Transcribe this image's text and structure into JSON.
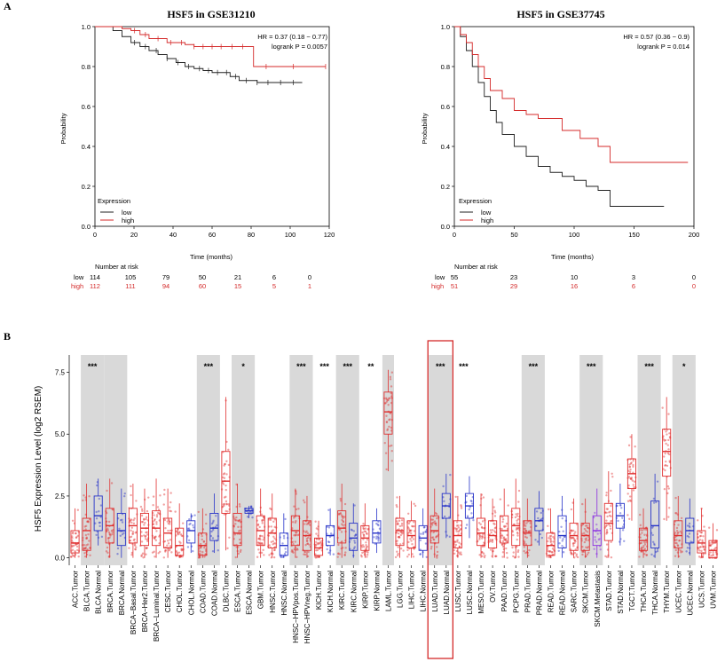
{
  "figure": {
    "panel_a_label": "A",
    "panel_b_label": "B"
  },
  "colors": {
    "low": "#222222",
    "high": "#d42a2a",
    "tumor": "#e03030",
    "normal": "#2733c8",
    "metastasis": "#8a2be2",
    "normal_bg": "#d9d9d9",
    "highlight": "#d42a2a"
  },
  "chart_data": [
    {
      "type": "line",
      "subtype": "kaplan-meier",
      "title": "HSF5 in GSE31210",
      "hr_text": "HR = 0.37 (0.18 − 0.77)",
      "logrank_text": "logrank P = 0.0057",
      "xlabel": "Time (months)",
      "ylabel": "Probability",
      "xlim": [
        0,
        130
      ],
      "ylim": [
        0,
        1
      ],
      "xticks": [
        "0",
        "20",
        "40",
        "60",
        "80",
        "100",
        "120"
      ],
      "yticks": [
        "0.0",
        "0.2",
        "0.4",
        "0.6",
        "0.8",
        "1.0"
      ],
      "legend_title": "Expression",
      "legend": [
        "low",
        "high"
      ],
      "risk_header": "Number at risk",
      "risk_table": {
        "low": [
          "114",
          "105",
          "79",
          "50",
          "21",
          "6",
          "0"
        ],
        "high": [
          "112",
          "111",
          "94",
          "60",
          "15",
          "5",
          "1"
        ]
      },
      "series": [
        {
          "name": "low",
          "x": [
            0,
            10,
            15,
            20,
            25,
            30,
            35,
            40,
            45,
            50,
            55,
            60,
            65,
            70,
            75,
            80,
            90,
            100,
            115
          ],
          "y": [
            1.0,
            0.98,
            0.95,
            0.92,
            0.9,
            0.88,
            0.86,
            0.84,
            0.82,
            0.8,
            0.79,
            0.78,
            0.77,
            0.77,
            0.75,
            0.73,
            0.72,
            0.72,
            0.72
          ],
          "censored": [
            22,
            28,
            34,
            40,
            46,
            52,
            58,
            63,
            68,
            73,
            78,
            84,
            90,
            96,
            103,
            110
          ]
        },
        {
          "name": "high",
          "x": [
            0,
            15,
            20,
            25,
            30,
            40,
            50,
            55,
            60,
            88,
            128
          ],
          "y": [
            1.0,
            0.99,
            0.98,
            0.96,
            0.94,
            0.92,
            0.91,
            0.9,
            0.9,
            0.8,
            0.8
          ],
          "censored": [
            22,
            28,
            35,
            42,
            48,
            55,
            60,
            65,
            70,
            76,
            82,
            95,
            110,
            128
          ]
        }
      ]
    },
    {
      "type": "line",
      "subtype": "kaplan-meier",
      "title": "HSF5 in GSE37745",
      "hr_text": "HR = 0.57 (0.36 − 0.9)",
      "logrank_text": "logrank P = 0.014",
      "xlabel": "Time (months)",
      "ylabel": "Probability",
      "xlim": [
        0,
        200
      ],
      "ylim": [
        0,
        1
      ],
      "xticks": [
        "0",
        "50",
        "100",
        "150",
        "200"
      ],
      "yticks": [
        "0.0",
        "0.2",
        "0.4",
        "0.6",
        "0.8",
        "1.0"
      ],
      "legend_title": "Expression",
      "legend": [
        "low",
        "high"
      ],
      "risk_header": "Number at risk",
      "risk_table": {
        "low": [
          "55",
          "23",
          "10",
          "3",
          "0"
        ],
        "high": [
          "51",
          "29",
          "16",
          "6",
          "0"
        ]
      },
      "series": [
        {
          "name": "low",
          "x": [
            0,
            5,
            10,
            15,
            20,
            25,
            30,
            35,
            40,
            50,
            60,
            70,
            80,
            90,
            100,
            110,
            120,
            130,
            175
          ],
          "y": [
            1.0,
            0.95,
            0.88,
            0.8,
            0.72,
            0.65,
            0.58,
            0.52,
            0.46,
            0.4,
            0.35,
            0.3,
            0.27,
            0.25,
            0.23,
            0.2,
            0.18,
            0.1,
            0.1
          ]
        },
        {
          "name": "high",
          "x": [
            0,
            5,
            10,
            15,
            20,
            25,
            30,
            40,
            50,
            60,
            70,
            90,
            105,
            120,
            130,
            195
          ],
          "y": [
            1.0,
            0.96,
            0.92,
            0.86,
            0.8,
            0.74,
            0.68,
            0.64,
            0.58,
            0.56,
            0.54,
            0.48,
            0.44,
            0.4,
            0.32,
            0.32
          ]
        }
      ]
    },
    {
      "type": "box",
      "ylabel": "HSF5 Expression Level (log2 RSEM)",
      "ylim": [
        -0.3,
        8.2
      ],
      "yticks": [
        "0.0",
        "2.5",
        "5.0",
        "7.5"
      ],
      "highlight_categories": [
        "LUAD.Tumor",
        "LUAD.Normal"
      ],
      "categories": [
        {
          "label": "ACC.Tumor",
          "kind": "tumor",
          "q1": 0.2,
          "med": 0.6,
          "q3": 1.1,
          "wl": 0,
          "wh": 2.0
        },
        {
          "label": "BLCA.Tumor",
          "kind": "tumor",
          "q1": 0.3,
          "med": 1.1,
          "q3": 1.6,
          "wl": 0,
          "wh": 3.0
        },
        {
          "label": "BLCA.Normal",
          "kind": "normal",
          "q1": 1.1,
          "med": 1.7,
          "q3": 2.5,
          "wl": 0.5,
          "wh": 3.2
        },
        {
          "label": "BRCA.Tumor",
          "kind": "tumor",
          "q1": 0.6,
          "med": 1.3,
          "q3": 2.0,
          "wl": 0,
          "wh": 3.2
        },
        {
          "label": "BRCA.Normal",
          "kind": "normal",
          "q1": 0.5,
          "med": 1.1,
          "q3": 1.8,
          "wl": 0,
          "wh": 2.8
        },
        {
          "label": "BRCA−Basal.Tumor",
          "kind": "tumor",
          "q1": 0.6,
          "med": 1.3,
          "q3": 2.0,
          "wl": 0,
          "wh": 3.0
        },
        {
          "label": "BRCA−Her2.Tumor",
          "kind": "tumor",
          "q1": 0.5,
          "med": 1.2,
          "q3": 1.8,
          "wl": 0,
          "wh": 2.8
        },
        {
          "label": "BRCA−Luminal.Tumor",
          "kind": "tumor",
          "q1": 0.5,
          "med": 1.2,
          "q3": 1.9,
          "wl": 0,
          "wh": 3.2
        },
        {
          "label": "CESC.Tumor",
          "kind": "tumor",
          "q1": 0.4,
          "med": 1.0,
          "q3": 1.6,
          "wl": 0,
          "wh": 2.8
        },
        {
          "label": "CHOL.Tumor",
          "kind": "tumor",
          "q1": 0.1,
          "med": 0.5,
          "q3": 1.2,
          "wl": 0,
          "wh": 2.2
        },
        {
          "label": "CHOL.Normal",
          "kind": "normal",
          "q1": 0.6,
          "med": 1.1,
          "q3": 1.5,
          "wl": 0.2,
          "wh": 1.8
        },
        {
          "label": "COAD.Tumor",
          "kind": "tumor",
          "q1": 0.1,
          "med": 0.5,
          "q3": 1.0,
          "wl": 0,
          "wh": 2.0
        },
        {
          "label": "COAD.Normal",
          "kind": "normal",
          "q1": 0.7,
          "med": 1.2,
          "q3": 1.8,
          "wl": 0.2,
          "wh": 2.6
        },
        {
          "label": "DLBC.Tumor",
          "kind": "tumor",
          "q1": 1.8,
          "med": 3.1,
          "q3": 4.3,
          "wl": 0.3,
          "wh": 6.5
        },
        {
          "label": "ESCA.Tumor",
          "kind": "tumor",
          "q1": 0.5,
          "med": 1.0,
          "q3": 1.8,
          "wl": 0,
          "wh": 3.0
        },
        {
          "label": "ESCA.Normal",
          "kind": "normal",
          "q1": 1.8,
          "med": 1.9,
          "q3": 2.0,
          "wl": 1.6,
          "wh": 2.1
        },
        {
          "label": "GBM.Tumor",
          "kind": "tumor",
          "q1": 0.5,
          "med": 1.1,
          "q3": 1.7,
          "wl": 0,
          "wh": 2.8
        },
        {
          "label": "HNSC.Tumor",
          "kind": "tumor",
          "q1": 0.4,
          "med": 1.0,
          "q3": 1.6,
          "wl": 0,
          "wh": 2.6
        },
        {
          "label": "HNSC.Normal",
          "kind": "normal",
          "q1": 0.1,
          "med": 0.5,
          "q3": 1.0,
          "wl": 0,
          "wh": 1.8
        },
        {
          "label": "HNSC−HPVpos.Tumor",
          "kind": "tumor",
          "q1": 0.5,
          "med": 1.1,
          "q3": 1.7,
          "wl": 0,
          "wh": 2.8
        },
        {
          "label": "HNSC−HPVneg.Tumor",
          "kind": "tumor",
          "q1": 0.3,
          "med": 0.9,
          "q3": 1.5,
          "wl": 0,
          "wh": 2.5
        },
        {
          "label": "KICH.Tumor",
          "kind": "tumor",
          "q1": 0.1,
          "med": 0.4,
          "q3": 0.8,
          "wl": 0,
          "wh": 1.5
        },
        {
          "label": "KICH.Normal",
          "kind": "normal",
          "q1": 0.5,
          "med": 0.9,
          "q3": 1.3,
          "wl": 0.1,
          "wh": 2.0
        },
        {
          "label": "KIRC.Tumor",
          "kind": "tumor",
          "q1": 0.6,
          "med": 1.2,
          "q3": 1.9,
          "wl": 0,
          "wh": 3.0
        },
        {
          "label": "KIRC.Normal",
          "kind": "normal",
          "q1": 0.3,
          "med": 0.8,
          "q3": 1.4,
          "wl": 0,
          "wh": 2.2
        },
        {
          "label": "KIRP.Tumor",
          "kind": "tumor",
          "q1": 0.3,
          "med": 0.8,
          "q3": 1.3,
          "wl": 0,
          "wh": 2.2
        },
        {
          "label": "KIRP.Normal",
          "kind": "normal",
          "q1": 0.6,
          "med": 1.0,
          "q3": 1.5,
          "wl": 0.2,
          "wh": 2.0
        },
        {
          "label": "LAML.Tumor",
          "kind": "tumor",
          "q1": 5.0,
          "med": 5.9,
          "q3": 6.7,
          "wl": 3.5,
          "wh": 7.6
        },
        {
          "label": "LGG.Tumor",
          "kind": "tumor",
          "q1": 0.5,
          "med": 1.1,
          "q3": 1.6,
          "wl": 0,
          "wh": 2.5
        },
        {
          "label": "LIHC.Tumor",
          "kind": "tumor",
          "q1": 0.4,
          "med": 0.9,
          "q3": 1.5,
          "wl": 0,
          "wh": 2.3
        },
        {
          "label": "LIHC.Normal",
          "kind": "normal",
          "q1": 0.3,
          "med": 0.8,
          "q3": 1.3,
          "wl": 0,
          "wh": 2.0
        },
        {
          "label": "LUAD.Tumor",
          "kind": "tumor",
          "q1": 0.6,
          "med": 1.1,
          "q3": 1.7,
          "wl": 0,
          "wh": 2.8
        },
        {
          "label": "LUAD.Normal",
          "kind": "normal",
          "q1": 1.6,
          "med": 2.1,
          "q3": 2.6,
          "wl": 0.8,
          "wh": 3.4
        },
        {
          "label": "LUSC.Tumor",
          "kind": "tumor",
          "q1": 0.4,
          "med": 0.9,
          "q3": 1.5,
          "wl": 0,
          "wh": 2.5
        },
        {
          "label": "LUSC.Normal",
          "kind": "normal",
          "q1": 1.6,
          "med": 2.1,
          "q3": 2.6,
          "wl": 0.8,
          "wh": 3.3
        },
        {
          "label": "MESO.Tumor",
          "kind": "tumor",
          "q1": 0.5,
          "med": 1.0,
          "q3": 1.6,
          "wl": 0,
          "wh": 2.6
        },
        {
          "label": "OV.Tumor",
          "kind": "tumor",
          "q1": 0.4,
          "med": 0.9,
          "q3": 1.5,
          "wl": 0,
          "wh": 2.4
        },
        {
          "label": "PAAD.Tumor",
          "kind": "tumor",
          "q1": 0.6,
          "med": 1.1,
          "q3": 1.7,
          "wl": 0,
          "wh": 2.8
        },
        {
          "label": "PCPG.Tumor",
          "kind": "tumor",
          "q1": 0.5,
          "med": 1.3,
          "q3": 2.0,
          "wl": 0,
          "wh": 3.2
        },
        {
          "label": "PRAD.Tumor",
          "kind": "tumor",
          "q1": 0.5,
          "med": 1.0,
          "q3": 1.5,
          "wl": 0,
          "wh": 2.4
        },
        {
          "label": "PRAD.Normal",
          "kind": "normal",
          "q1": 1.1,
          "med": 1.5,
          "q3": 2.0,
          "wl": 0.5,
          "wh": 2.7
        },
        {
          "label": "READ.Tumor",
          "kind": "tumor",
          "q1": 0.1,
          "med": 0.5,
          "q3": 1.0,
          "wl": 0,
          "wh": 2.0
        },
        {
          "label": "READ.Normal",
          "kind": "normal",
          "q1": 0.4,
          "med": 0.9,
          "q3": 1.7,
          "wl": 0,
          "wh": 2.5
        },
        {
          "label": "SARC.Tumor",
          "kind": "tumor",
          "q1": 0.3,
          "med": 0.9,
          "q3": 1.4,
          "wl": 0,
          "wh": 2.4
        },
        {
          "label": "SKCM.Tumor",
          "kind": "tumor",
          "q1": 0.3,
          "med": 0.9,
          "q3": 1.4,
          "wl": 0,
          "wh": 2.4
        },
        {
          "label": "SKCM.Metastasis",
          "kind": "metastasis",
          "q1": 0.5,
          "med": 1.1,
          "q3": 1.7,
          "wl": 0,
          "wh": 2.8
        },
        {
          "label": "STAD.Tumor",
          "kind": "tumor",
          "q1": 0.7,
          "med": 1.4,
          "q3": 2.2,
          "wl": 0,
          "wh": 3.5
        },
        {
          "label": "STAD.Normal",
          "kind": "normal",
          "q1": 1.2,
          "med": 1.7,
          "q3": 2.2,
          "wl": 0.5,
          "wh": 3.0
        },
        {
          "label": "TGCT.Tumor",
          "kind": "tumor",
          "q1": 2.8,
          "med": 3.4,
          "q3": 4.0,
          "wl": 1.5,
          "wh": 5.0
        },
        {
          "label": "THCA.Tumor",
          "kind": "tumor",
          "q1": 0.3,
          "med": 0.7,
          "q3": 1.2,
          "wl": 0,
          "wh": 2.0
        },
        {
          "label": "THCA.Normal",
          "kind": "normal",
          "q1": 0.4,
          "med": 1.3,
          "q3": 2.3,
          "wl": 0,
          "wh": 3.4
        },
        {
          "label": "THYM.Tumor",
          "kind": "tumor",
          "q1": 3.3,
          "med": 4.3,
          "q3": 5.2,
          "wl": 1.5,
          "wh": 6.5
        },
        {
          "label": "UCEC.Tumor",
          "kind": "tumor",
          "q1": 0.4,
          "med": 0.9,
          "q3": 1.5,
          "wl": 0,
          "wh": 2.5
        },
        {
          "label": "UCEC.Normal",
          "kind": "normal",
          "q1": 0.6,
          "med": 1.1,
          "q3": 1.6,
          "wl": 0.1,
          "wh": 2.4
        },
        {
          "label": "UCS.Tumor",
          "kind": "tumor",
          "q1": 0.2,
          "med": 0.6,
          "q3": 1.1,
          "wl": 0,
          "wh": 2.0
        },
        {
          "label": "UVM.Tumor",
          "kind": "tumor",
          "q1": 0.0,
          "med": 0.3,
          "q3": 0.7,
          "wl": 0,
          "wh": 1.4
        }
      ],
      "gray_bands": [
        {
          "from": "BLCA.Tumor",
          "to": "BLCA.Normal"
        },
        {
          "from": "BRCA.Tumor",
          "to": "BRCA.Normal"
        },
        {
          "from": "COAD.Tumor",
          "to": "COAD.Normal"
        },
        {
          "from": "ESCA.Tumor",
          "to": "ESCA.Normal"
        },
        {
          "from": "HNSC−HPVpos.Tumor",
          "to": "HNSC−HPVneg.Tumor"
        },
        {
          "from": "KIRC.Tumor",
          "to": "KIRC.Normal"
        },
        {
          "from": "LAML.Tumor",
          "to": "LAML.Tumor"
        },
        {
          "from": "LUAD.Tumor",
          "to": "LUAD.Normal"
        },
        {
          "from": "PRAD.Tumor",
          "to": "PRAD.Normal"
        },
        {
          "from": "SKCM.Tumor",
          "to": "SKCM.Metastasis"
        },
        {
          "from": "THCA.Tumor",
          "to": "THCA.Normal"
        },
        {
          "from": "UCEC.Tumor",
          "to": "UCEC.Normal"
        }
      ],
      "significance": [
        {
          "from": "BLCA.Tumor",
          "to": "BLCA.Normal",
          "label": "***"
        },
        {
          "from": "COAD.Tumor",
          "to": "COAD.Normal",
          "label": "***"
        },
        {
          "from": "ESCA.Tumor",
          "to": "ESCA.Normal",
          "label": "*"
        },
        {
          "from": "HNSC−HPVpos.Tumor",
          "to": "HNSC−HPVneg.Tumor",
          "label": "***"
        },
        {
          "from": "KICH.Tumor",
          "to": "KICH.Normal",
          "label": "***"
        },
        {
          "from": "KIRC.Tumor",
          "to": "KIRC.Normal",
          "label": "***"
        },
        {
          "from": "KIRP.Tumor",
          "to": "KIRP.Normal",
          "label": "**"
        },
        {
          "from": "LUAD.Tumor",
          "to": "LUAD.Normal",
          "label": "***"
        },
        {
          "from": "LUSC.Tumor",
          "to": "LUSC.Normal",
          "label": "***"
        },
        {
          "from": "PRAD.Tumor",
          "to": "PRAD.Normal",
          "label": "***"
        },
        {
          "from": "SKCM.Tumor",
          "to": "SKCM.Metastasis",
          "label": "***"
        },
        {
          "from": "THCA.Tumor",
          "to": "THCA.Normal",
          "label": "***"
        },
        {
          "from": "UCEC.Tumor",
          "to": "UCEC.Normal",
          "label": "*"
        }
      ]
    }
  ]
}
